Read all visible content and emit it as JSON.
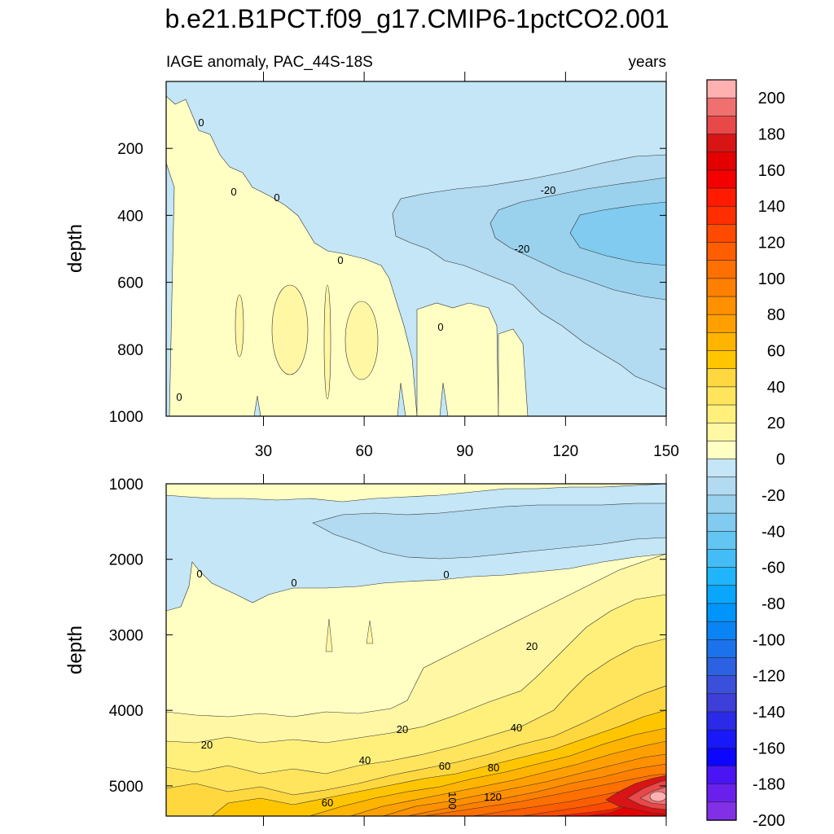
{
  "chart_data": {
    "type": "contour",
    "title": "b.e21.B1PCT.f09_g17.CMIP6-1pctCO2.001",
    "panels": [
      {
        "subtitle_left": "IAGE anomaly, PAC_44S-18S",
        "subtitle_right": "years",
        "ylabel": "depth",
        "xlim": [
          1,
          150
        ],
        "ylim": [
          1000,
          0
        ],
        "xticks": [
          "30",
          "60",
          "90",
          "120",
          "150"
        ],
        "yticks": [
          "200",
          "400",
          "600",
          "800",
          "1000"
        ],
        "contour_labels": [
          "0",
          "0",
          "0",
          "0",
          "-20",
          "-20",
          "0",
          "0"
        ]
      },
      {
        "ylabel": "depth",
        "xlim": [
          1,
          150
        ],
        "ylim": [
          5400,
          1000
        ],
        "yticks": [
          "1000",
          "2000",
          "3000",
          "4000",
          "5000"
        ],
        "contour_labels": [
          "0",
          "0",
          "0",
          "20",
          "20",
          "40",
          "20",
          "40",
          "60",
          "80",
          "60",
          "100",
          "120"
        ]
      }
    ],
    "colorbar": {
      "levels": [
        "200",
        "180",
        "160",
        "140",
        "120",
        "100",
        "80",
        "60",
        "40",
        "20",
        "0",
        "-20",
        "-40",
        "-60",
        "-80",
        "-100",
        "-120",
        "-140",
        "-160",
        "-180",
        "-200"
      ],
      "colors": [
        "#ffb0b0",
        "#f07070",
        "#e84848",
        "#d81414",
        "#e40000",
        "#f40000",
        "#ff1a00",
        "#ff2e00",
        "#ff4a00",
        "#ff5e00",
        "#ff7000",
        "#ff8000",
        "#ff9000",
        "#ffa000",
        "#ffb400",
        "#ffc600",
        "#ffd840",
        "#ffe45e",
        "#fff07c",
        "#fff7a4",
        "#ffffc4",
        "#c4e6f6",
        "#b2daf0",
        "#9ad2ee",
        "#80cbef",
        "#62c5f2",
        "#44bdf6",
        "#20b4fa",
        "#0aa6fb",
        "#0095fb",
        "#0a84f4",
        "#1c72ea",
        "#2c62e2",
        "#3a50da",
        "#3e3ed8",
        "#2a2ae8",
        "#1818f8",
        "#0c06ff",
        "#4a14f4",
        "#6a20ec",
        "#8230e6"
      ]
    }
  }
}
